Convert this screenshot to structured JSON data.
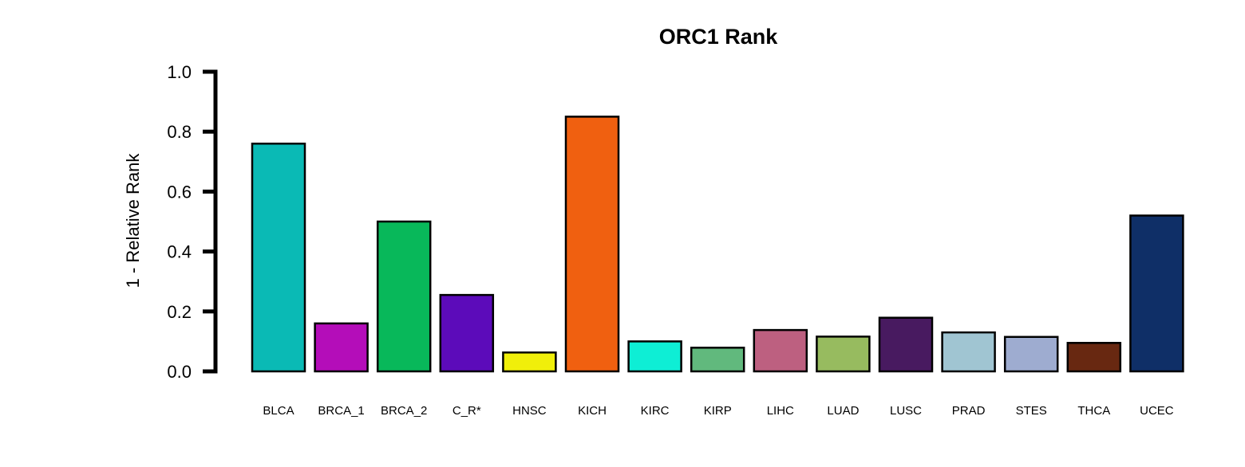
{
  "chart_data": {
    "type": "bar",
    "title": "ORC1 Rank",
    "xlabel": "",
    "ylabel": "1 - Relative Rank",
    "ylim": [
      0,
      1
    ],
    "yticks": [
      "0.0",
      "0.2",
      "0.4",
      "0.6",
      "0.8",
      "1.0"
    ],
    "grid": false,
    "categories": [
      "BLCA",
      "BRCA_1",
      "BRCA_2",
      "C_R*",
      "HNSC",
      "KICH",
      "KIRC",
      "KIRP",
      "LIHC",
      "LUAD",
      "LUSC",
      "PRAD",
      "STES",
      "THCA",
      "UCEC"
    ],
    "values": [
      0.76,
      0.16,
      0.5,
      0.255,
      0.063,
      0.85,
      0.1,
      0.079,
      0.138,
      0.116,
      0.179,
      0.13,
      0.115,
      0.095,
      0.52
    ],
    "colors": [
      "#0ABAB5",
      "#B40DB9",
      "#08B85A",
      "#5C0BBA",
      "#F0EF0A",
      "#F06010",
      "#0EEED5",
      "#61B97D",
      "#BD6080",
      "#97BB5F",
      "#481A60",
      "#A0C5D2",
      "#9EACD0",
      "#682811",
      "#0F2F67"
    ]
  }
}
